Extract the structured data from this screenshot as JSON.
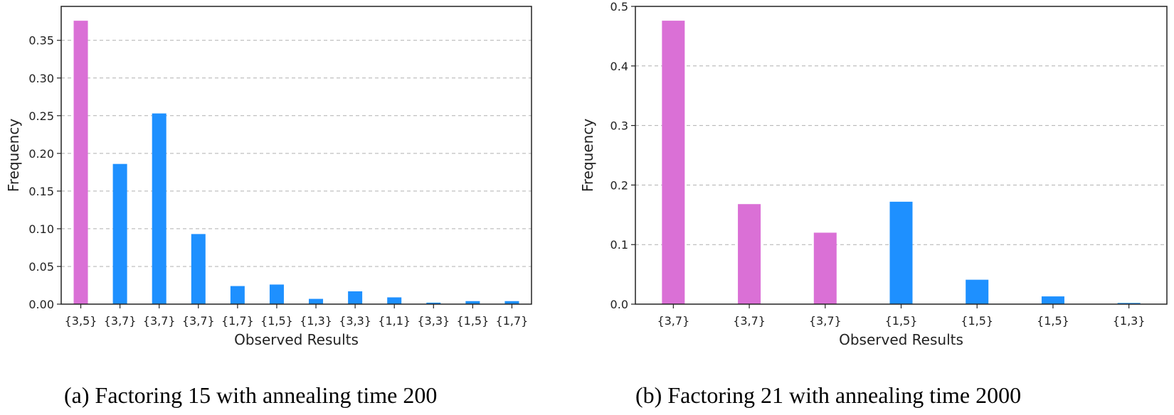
{
  "colors": {
    "highlight": "#DA70D6",
    "normal": "#1E90FF",
    "grid": "#b0b0b0",
    "axis": "#222222"
  },
  "charts": [
    {
      "caption": "(a) Factoring 15 with annealing time 200",
      "chart_data": {
        "type": "bar",
        "xlabel": "Observed Results",
        "ylabel": "Frequency",
        "ylim": [
          0,
          0.395
        ],
        "yticks": [
          "0.00",
          "0.05",
          "0.10",
          "0.15",
          "0.20",
          "0.25",
          "0.30",
          "0.35"
        ],
        "categories": [
          "{3,5}",
          "{3,7}",
          "{3,7}",
          "{3,7}",
          "{1,7}",
          "{1,5}",
          "{1,3}",
          "{3,3}",
          "{1,1}",
          "{3,3}",
          "{1,5}",
          "{1,7}"
        ],
        "values": [
          0.376,
          0.186,
          0.253,
          0.093,
          0.024,
          0.026,
          0.007,
          0.017,
          0.009,
          0.002,
          0.004,
          0.004
        ],
        "highlight": [
          true,
          false,
          false,
          false,
          false,
          false,
          false,
          false,
          false,
          false,
          false,
          false
        ],
        "grid": "horizontal dashed"
      }
    },
    {
      "caption": "(b) Factoring 21 with annealing time 2000",
      "chart_data": {
        "type": "bar",
        "xlabel": "Observed Results",
        "ylabel": "Frequency",
        "ylim": [
          0,
          0.5
        ],
        "yticks": [
          "0.0",
          "0.1",
          "0.2",
          "0.3",
          "0.4",
          "0.5"
        ],
        "categories": [
          "{3,7}",
          "{3,7}",
          "{3,7}",
          "{1,5}",
          "{1,5}",
          "{1,5}",
          "{1,3}"
        ],
        "values": [
          0.476,
          0.168,
          0.12,
          0.172,
          0.041,
          0.013,
          0.002
        ],
        "highlight": [
          true,
          true,
          true,
          false,
          false,
          false,
          false
        ],
        "grid": "horizontal dashed"
      }
    }
  ]
}
